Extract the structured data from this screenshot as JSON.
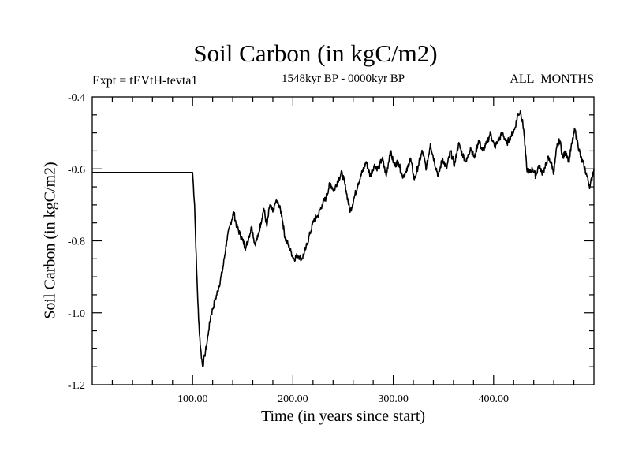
{
  "chart_data": {
    "type": "line",
    "title": "Soil Carbon (in kgC/m2)",
    "subtitle": "1548kyr BP - 0000kyr BP",
    "left_annotation": "Expt = tEVtH-tevta1",
    "right_annotation": "ALL_MONTHS",
    "xlabel": "Time (in years since start)",
    "ylabel": "Soil Carbon (in kgC/m2)",
    "xlim": [
      0,
      500
    ],
    "ylim": [
      -1.2,
      -0.4
    ],
    "x_ticks": [
      100,
      200,
      300,
      400
    ],
    "x_tick_labels": [
      "100.00",
      "200.00",
      "300.00",
      "400.00"
    ],
    "y_ticks": [
      -1.2,
      -1.0,
      -0.8,
      -0.6,
      -0.4
    ],
    "y_tick_labels": [
      "-1.2",
      "-1.0",
      "-0.8",
      "-0.6",
      "-0.4"
    ],
    "grid": false,
    "series": [
      {
        "name": "Soil Carbon",
        "x": [
          0,
          99,
          100,
          102,
          104,
          106,
          108,
          110,
          112,
          114,
          116,
          118,
          120,
          123,
          126,
          130,
          134,
          138,
          141,
          144,
          147,
          150,
          153,
          156,
          159,
          162,
          165,
          168,
          171,
          174,
          177,
          180,
          183,
          186,
          189,
          192,
          195,
          198,
          201,
          205,
          209,
          213,
          217,
          221,
          225,
          229,
          233,
          237,
          241,
          245,
          249,
          253,
          257,
          261,
          265,
          269,
          273,
          277,
          281,
          285,
          289,
          293,
          297,
          301,
          305,
          309,
          313,
          317,
          321,
          325,
          329,
          333,
          337,
          341,
          345,
          349,
          353,
          357,
          361,
          365,
          369,
          373,
          377,
          381,
          385,
          389,
          393,
          397,
          401,
          405,
          409,
          413,
          417,
          421,
          424,
          427,
          430,
          433,
          436,
          439,
          442,
          445,
          448,
          451,
          454,
          457,
          460,
          463,
          466,
          469,
          472,
          475,
          478,
          481,
          484,
          487,
          490,
          493,
          496,
          500
        ],
        "values": [
          -0.61,
          -0.61,
          -0.61,
          -0.7,
          -0.88,
          -1.02,
          -1.1,
          -1.15,
          -1.12,
          -1.09,
          -1.05,
          -1.01,
          -0.99,
          -0.96,
          -0.93,
          -0.88,
          -0.8,
          -0.75,
          -0.72,
          -0.76,
          -0.78,
          -0.8,
          -0.82,
          -0.79,
          -0.76,
          -0.81,
          -0.79,
          -0.75,
          -0.71,
          -0.76,
          -0.7,
          -0.72,
          -0.69,
          -0.7,
          -0.73,
          -0.79,
          -0.81,
          -0.83,
          -0.85,
          -0.84,
          -0.85,
          -0.82,
          -0.78,
          -0.74,
          -0.73,
          -0.7,
          -0.68,
          -0.64,
          -0.66,
          -0.63,
          -0.61,
          -0.66,
          -0.72,
          -0.68,
          -0.64,
          -0.61,
          -0.58,
          -0.62,
          -0.59,
          -0.6,
          -0.57,
          -0.62,
          -0.55,
          -0.59,
          -0.58,
          -0.62,
          -0.61,
          -0.57,
          -0.63,
          -0.59,
          -0.55,
          -0.6,
          -0.53,
          -0.58,
          -0.62,
          -0.57,
          -0.6,
          -0.55,
          -0.59,
          -0.53,
          -0.56,
          -0.58,
          -0.54,
          -0.57,
          -0.52,
          -0.55,
          -0.53,
          -0.5,
          -0.54,
          -0.52,
          -0.5,
          -0.53,
          -0.51,
          -0.49,
          -0.45,
          -0.44,
          -0.49,
          -0.6,
          -0.61,
          -0.6,
          -0.62,
          -0.59,
          -0.61,
          -0.6,
          -0.57,
          -0.58,
          -0.61,
          -0.54,
          -0.52,
          -0.57,
          -0.55,
          -0.58,
          -0.53,
          -0.49,
          -0.53,
          -0.57,
          -0.59,
          -0.62,
          -0.65,
          -0.6
        ]
      }
    ]
  }
}
